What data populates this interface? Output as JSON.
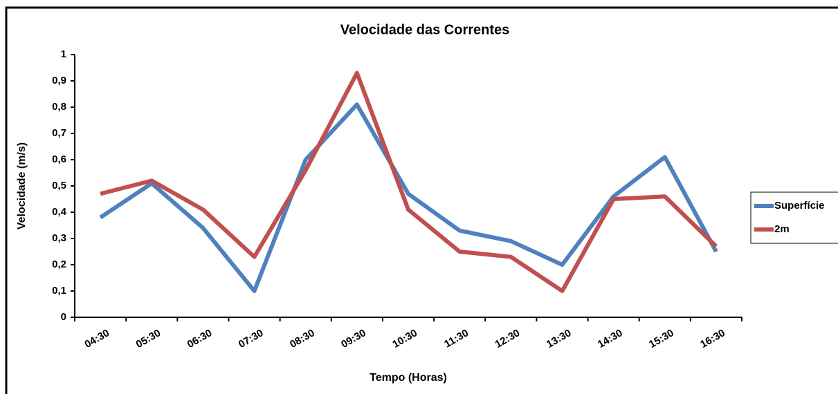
{
  "chart_data": {
    "type": "line",
    "title": "Velocidade das Correntes",
    "xlabel": "Tempo (Horas)",
    "ylabel": "Velocidade (m/s)",
    "categories": [
      "04:30",
      "05:30",
      "06:30",
      "07:30",
      "08:30",
      "09:30",
      "10:30",
      "11:30",
      "12:30",
      "13:30",
      "14:30",
      "15:30",
      "16:30"
    ],
    "series": [
      {
        "name": "Superfície",
        "color": "#4f81bd",
        "values": [
          0.38,
          0.51,
          0.34,
          0.1,
          0.6,
          0.81,
          0.47,
          0.33,
          0.29,
          0.2,
          0.46,
          0.61,
          0.25
        ]
      },
      {
        "name": "2m",
        "color": "#c0504d",
        "values": [
          0.47,
          0.52,
          0.41,
          0.23,
          0.56,
          0.93,
          0.41,
          0.25,
          0.23,
          0.1,
          0.45,
          0.46,
          0.27
        ]
      }
    ],
    "ylim": [
      0,
      1
    ],
    "yticks": [
      0,
      {
        "value": 0.1,
        "label": "0,1"
      },
      {
        "value": 0.2,
        "label": "0,2"
      },
      {
        "value": 0.3,
        "label": "0,3"
      },
      {
        "value": 0.4,
        "label": "0,4"
      },
      {
        "value": 0.5,
        "label": "0,5"
      },
      {
        "value": 0.6,
        "label": "0,6"
      },
      {
        "value": 0.7,
        "label": "0,7"
      },
      {
        "value": 0.8,
        "label": "0,8"
      },
      {
        "value": 0.9,
        "label": "0,9"
      },
      1
    ],
    "grid": false,
    "legend": "right"
  }
}
